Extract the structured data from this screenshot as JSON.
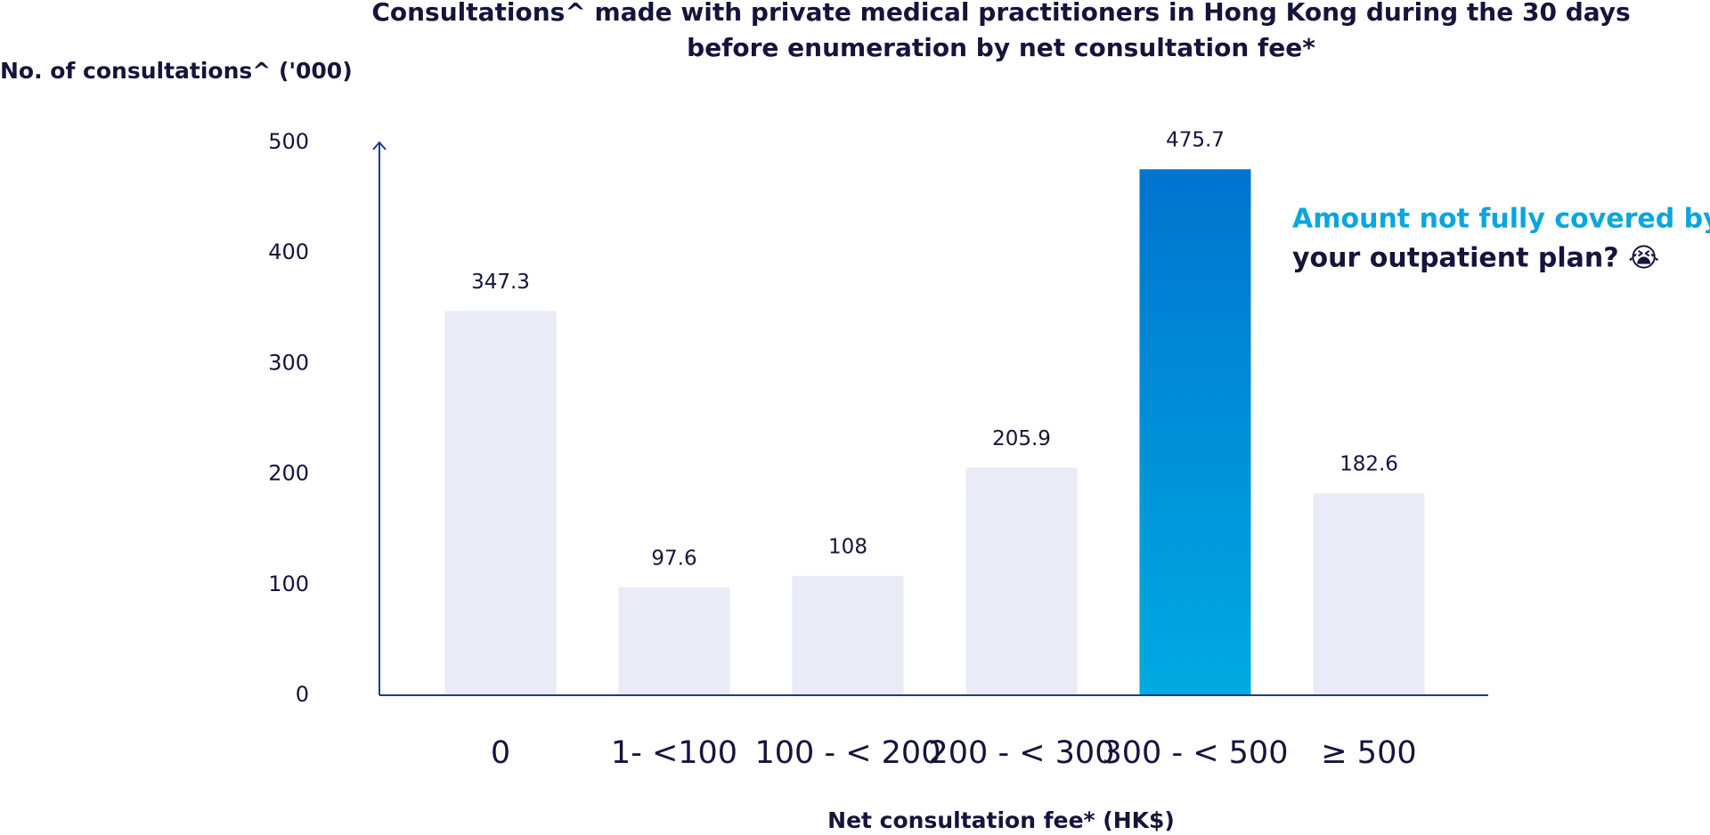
{
  "chart_data": {
    "type": "bar",
    "title_lines": [
      "Consultations^ made with private medical practitioners in Hong Kong during the 30 days",
      "before enumeration by net consultation fee*"
    ],
    "y_label": "No. of consultations^ ('000)",
    "x_label": "Net consultation fee* (HK$)",
    "categories": [
      "0",
      "1- <100",
      "100 - < 200",
      "200 - < 300",
      "300 - < 500",
      "≥ 500"
    ],
    "values": [
      347.3,
      97.6,
      108,
      205.9,
      475.7,
      182.6
    ],
    "colors": [
      "#e9ebf6",
      "#e9ebf6",
      "#e9ebf6",
      "#e9ebf6",
      [
        "#0074cf",
        "#00aae1"
      ],
      "#e9ebf6"
    ],
    "ylim": [
      0,
      500
    ],
    "yticks": [
      0,
      100,
      200,
      300,
      400,
      500
    ],
    "axis_color": "#1f3a8f",
    "annotation": {
      "lines": [
        {
          "text": "Amount not fully covered by",
          "color": "#0aa6dc"
        },
        {
          "text": "your outpatient plan? 😭",
          "color": "#14143c"
        }
      ]
    }
  }
}
